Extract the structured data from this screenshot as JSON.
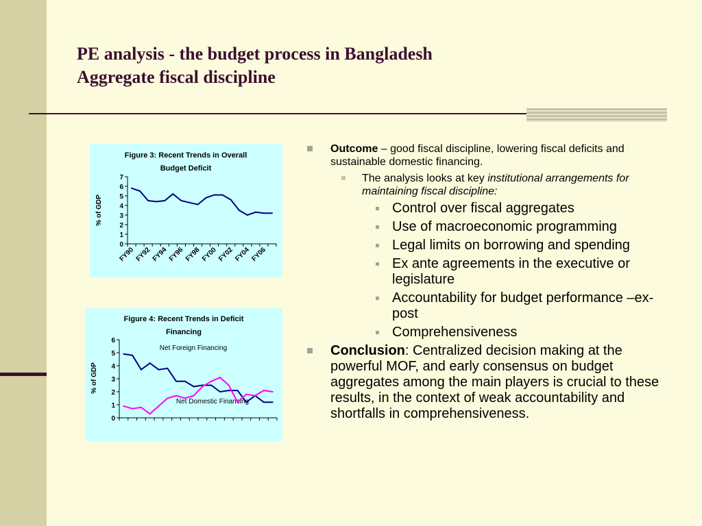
{
  "slide": {
    "title_line1": "PE analysis - the budget process in Bangladesh",
    "title_line2": "Aggregate fiscal discipline"
  },
  "bullets": {
    "outcome": {
      "keyword": "Outcome",
      "text": " – good fiscal discipline, lowering fiscal deficits and sustainable domestic financing."
    },
    "analysis": {
      "text": "The analysis looks at key ",
      "italic": "institutional arrangements for maintaining fiscal discipline:"
    },
    "items": [
      "Control over fiscal aggregates",
      "Use of macroeconomic programming",
      "Legal limits on borrowing and spending",
      "Ex ante agreements in the executive or legislature",
      "Accountability for budget performance –ex-post",
      "Comprehensiveness"
    ],
    "conclusion": {
      "keyword": "Conclusion",
      "text": ": Centralized decision making at the powerful MOF, and early consensus on budget aggregates among the main players is crucial to these results, in the context of weak accountability and shortfalls in comprehensiveness."
    }
  },
  "chart_data": [
    {
      "type": "line",
      "title_lines": [
        "Figure 3: Recent Trends in Overall",
        "Budget Deficit"
      ],
      "ylabel": "% of GDP",
      "ylim": [
        0,
        7
      ],
      "yticks": [
        0,
        1,
        2,
        3,
        4,
        5,
        6,
        7
      ],
      "xtick_labels": [
        "FY90",
        "FY92",
        "FY94",
        "FY96",
        "FY98",
        "FY00",
        "FY02",
        "FY04",
        "FY06"
      ],
      "series": [
        {
          "color": "#000080",
          "values": [
            5.8,
            5.5,
            4.5,
            4.4,
            4.5,
            5.2,
            4.5,
            4.3,
            4.1,
            4.8,
            5.1,
            5.1,
            4.6,
            3.5,
            3.0,
            3.3,
            3.2,
            3.2
          ]
        }
      ]
    },
    {
      "type": "line",
      "title_lines": [
        "Figure 4: Recent Trends in Deficit",
        "Financing"
      ],
      "ylabel": "% of GDP",
      "ylim": [
        0,
        6
      ],
      "yticks": [
        0,
        1,
        2,
        3,
        4,
        5,
        6
      ],
      "series": [
        {
          "name": "Net Foreign Financing",
          "color": "#000080",
          "values": [
            4.9,
            4.8,
            3.7,
            4.2,
            3.7,
            3.8,
            2.8,
            2.8,
            2.4,
            2.5,
            2.5,
            2.0,
            2.1,
            2.1,
            1.2,
            1.7,
            1.2,
            1.2
          ]
        },
        {
          "name": "Net Domestic Financing",
          "color": "#ff00ff",
          "values": [
            0.9,
            0.7,
            0.8,
            0.3,
            0.9,
            1.5,
            1.7,
            1.5,
            1.7,
            2.4,
            2.8,
            3.1,
            2.5,
            1.2,
            1.8,
            1.7,
            2.1,
            2.0
          ]
        }
      ]
    }
  ]
}
